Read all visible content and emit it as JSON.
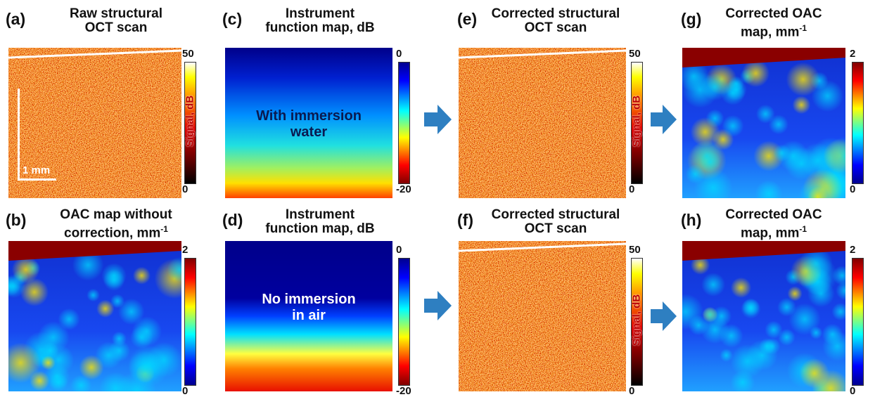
{
  "panels": [
    {
      "label": "(a)",
      "title": [
        "Raw structural",
        "OCT scan"
      ],
      "colorbar": {
        "label": "Signal, dB",
        "ticks": [
          50,
          0
        ]
      },
      "scale_bar": "1 mm"
    },
    {
      "label": "(b)",
      "title": [
        "OAC map without",
        "correction, mm"
      ],
      "title_superscript": "-1",
      "colorbar": {
        "ticks": [
          2,
          0
        ]
      }
    },
    {
      "label": "(c)",
      "title": [
        "Instrument",
        "function map, dB"
      ],
      "colorbar": {
        "ticks": [
          0,
          -20
        ]
      },
      "overlay": [
        "With immersion",
        "water"
      ]
    },
    {
      "label": "(d)",
      "title": [
        "Instrument",
        "function map, dB"
      ],
      "colorbar": {
        "ticks": [
          0,
          -20
        ]
      },
      "overlay": [
        "No immersion",
        "in air"
      ]
    },
    {
      "label": "(e)",
      "title": [
        "Corrected structural",
        "OCT scan"
      ],
      "colorbar": {
        "label": "Signal, dB",
        "ticks": [
          50,
          0
        ]
      }
    },
    {
      "label": "(f)",
      "title": [
        "Corrected structural",
        "OCT scan"
      ],
      "colorbar": {
        "label": "Signal, dB",
        "ticks": [
          50,
          0
        ]
      }
    },
    {
      "label": "(g)",
      "title": [
        "Corrected OAC",
        "map, mm"
      ],
      "title_superscript": "-1",
      "colorbar": {
        "ticks": [
          2,
          0
        ]
      }
    },
    {
      "label": "(h)",
      "title": [
        "Corrected OAC",
        "map, mm"
      ],
      "title_superscript": "-1",
      "colorbar": {
        "ticks": [
          2,
          0
        ]
      }
    }
  ]
}
